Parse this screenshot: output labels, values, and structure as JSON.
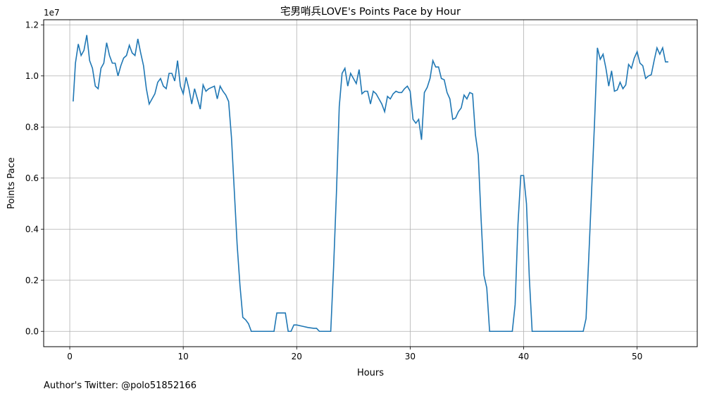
{
  "chart_data": {
    "type": "line",
    "title": "宅男哨兵LOVE's Points Pace by Hour",
    "xlabel": "Hours",
    "ylabel": "Points Pace",
    "y_offset_label": "1e7",
    "footer": "Author's Twitter: @polo51852166",
    "xlim": [
      -2.3,
      55.3
    ],
    "ylim": [
      -0.06,
      1.22
    ],
    "x_ticks": [
      0,
      10,
      20,
      30,
      40,
      50
    ],
    "y_ticks": [
      0.0,
      0.2,
      0.4,
      0.6,
      0.8,
      1.0,
      1.2
    ],
    "y_tick_labels": [
      "0.0",
      "0.2",
      "0.4",
      "0.6",
      "0.8",
      "1.0",
      "1.2"
    ],
    "grid": true,
    "line_color": "#1f77b4",
    "series": [
      {
        "x": [
          0.3,
          0.5,
          0.75,
          1.0,
          1.25,
          1.5,
          1.75,
          2.0,
          2.25,
          2.5,
          2.75,
          3.0,
          3.25,
          3.5,
          3.75,
          4.0,
          4.25,
          4.5,
          4.75,
          5.0,
          5.25,
          5.5,
          5.75,
          6.0,
          6.25,
          6.5,
          6.75,
          7.0,
          7.25,
          7.5,
          7.75,
          8.0,
          8.25,
          8.5,
          8.75,
          9.0,
          9.25,
          9.5,
          9.75,
          10.0,
          10.25,
          10.5,
          10.75,
          11.0,
          11.25,
          11.5,
          11.75,
          12.0,
          12.25,
          12.5,
          12.75,
          13.0,
          13.25,
          13.5,
          13.75,
          14.0,
          14.25,
          14.5,
          14.75,
          15.0,
          15.25,
          15.5,
          15.75,
          16.0,
          16.25,
          16.5,
          16.75,
          17.0,
          17.5,
          18.0,
          18.25,
          18.5,
          19.0,
          19.25,
          19.5,
          19.75,
          20.0,
          20.5,
          21.0,
          21.5,
          21.75,
          22.0,
          22.5,
          23.0,
          23.25,
          23.5,
          23.75,
          24.0,
          24.25,
          24.5,
          24.75,
          25.0,
          25.25,
          25.5,
          25.75,
          26.0,
          26.25,
          26.5,
          26.75,
          27.0,
          27.25,
          27.5,
          27.75,
          28.0,
          28.25,
          28.5,
          28.75,
          29.0,
          29.25,
          29.5,
          29.75,
          30.0,
          30.25,
          30.5,
          30.75,
          31.0,
          31.25,
          31.5,
          31.75,
          32.0,
          32.25,
          32.5,
          32.75,
          33.0,
          33.25,
          33.5,
          33.75,
          34.0,
          34.25,
          34.5,
          34.75,
          35.0,
          35.25,
          35.5,
          35.75,
          36.0,
          36.25,
          36.5,
          36.75,
          37.0,
          37.5,
          38.0,
          38.5,
          39.0,
          39.25,
          39.5,
          39.75,
          40.0,
          40.25,
          40.5,
          40.75,
          41.0,
          41.5,
          42.0,
          42.5,
          43.0,
          43.5,
          44.0,
          44.5,
          45.0,
          45.25,
          45.5,
          45.75,
          46.0,
          46.25,
          46.5,
          46.75,
          47.0,
          47.25,
          47.5,
          47.75,
          48.0,
          48.25,
          48.5,
          48.75,
          49.0,
          49.25,
          49.5,
          49.75,
          50.0,
          50.25,
          50.5,
          50.75,
          51.0,
          51.25,
          51.5,
          51.75,
          52.0,
          52.25,
          52.5,
          52.75
        ],
        "y": [
          0.9,
          1.05,
          1.125,
          1.08,
          1.1,
          1.16,
          1.06,
          1.03,
          0.96,
          0.95,
          1.03,
          1.05,
          1.13,
          1.08,
          1.05,
          1.05,
          1.0,
          1.04,
          1.07,
          1.08,
          1.12,
          1.09,
          1.08,
          1.145,
          1.09,
          1.04,
          0.95,
          0.89,
          0.91,
          0.93,
          0.975,
          0.99,
          0.96,
          0.95,
          1.01,
          1.01,
          0.98,
          1.06,
          0.96,
          0.93,
          0.995,
          0.95,
          0.89,
          0.95,
          0.91,
          0.87,
          0.965,
          0.94,
          0.95,
          0.955,
          0.96,
          0.91,
          0.96,
          0.94,
          0.925,
          0.9,
          0.76,
          0.55,
          0.34,
          0.18,
          0.055,
          0.045,
          0.03,
          0.0,
          0.0,
          0.0,
          0.0,
          0.0,
          0.0,
          0.0,
          0.072,
          0.072,
          0.072,
          0.0,
          0.0,
          0.025,
          0.025,
          0.02,
          0.015,
          0.012,
          0.012,
          0.0,
          0.0,
          0.0,
          0.25,
          0.54,
          0.88,
          1.01,
          1.03,
          0.96,
          1.01,
          0.99,
          0.97,
          1.025,
          0.93,
          0.94,
          0.94,
          0.89,
          0.94,
          0.93,
          0.91,
          0.89,
          0.86,
          0.92,
          0.91,
          0.93,
          0.94,
          0.935,
          0.935,
          0.95,
          0.96,
          0.94,
          0.83,
          0.815,
          0.83,
          0.75,
          0.935,
          0.955,
          0.99,
          1.06,
          1.035,
          1.035,
          0.99,
          0.985,
          0.935,
          0.91,
          0.83,
          0.835,
          0.86,
          0.875,
          0.925,
          0.91,
          0.935,
          0.93,
          0.77,
          0.69,
          0.44,
          0.22,
          0.17,
          0.0,
          0.0,
          0.0,
          0.0,
          0.0,
          0.105,
          0.42,
          0.61,
          0.61,
          0.5,
          0.21,
          0.0,
          0.0,
          0.0,
          0.0,
          0.0,
          0.0,
          0.0,
          0.0,
          0.0,
          0.0,
          0.0,
          0.05,
          0.3,
          0.56,
          0.82,
          1.11,
          1.065,
          1.085,
          1.03,
          0.96,
          1.02,
          0.94,
          0.945,
          0.975,
          0.95,
          0.965,
          1.045,
          1.03,
          1.07,
          1.095,
          1.05,
          1.04,
          0.99,
          1.0,
          1.005,
          1.06,
          1.11,
          1.085,
          1.11,
          1.055,
          1.055
        ]
      }
    ]
  }
}
